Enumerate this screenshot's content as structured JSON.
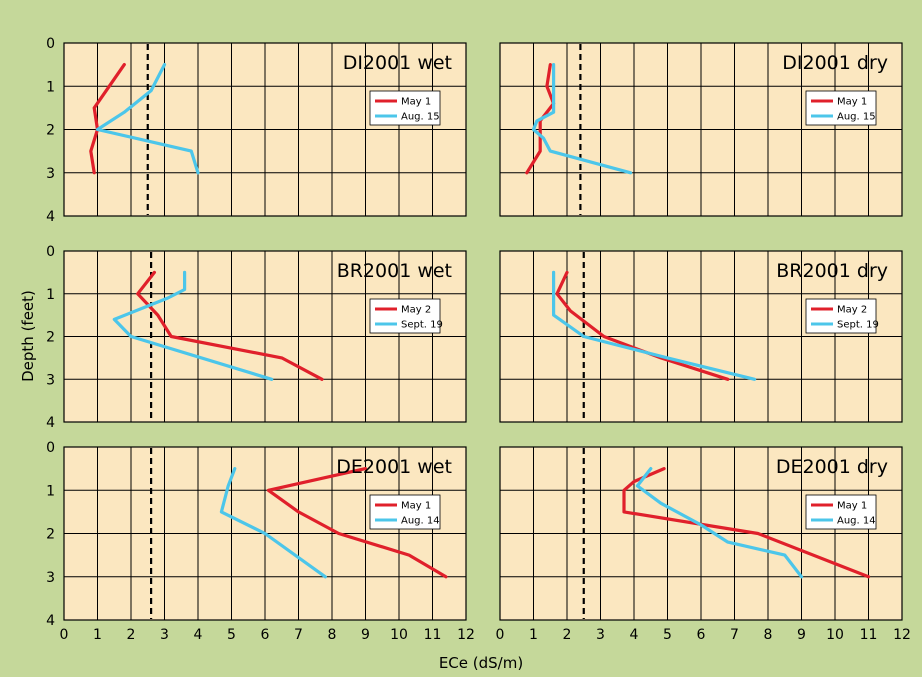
{
  "chart_data": {
    "type": "line",
    "xlabel": "ECe (dS/m)",
    "ylabel": "Depth (feet)",
    "xlim": [
      0,
      12
    ],
    "ylim": [
      4,
      0
    ],
    "x_ticks": [
      0,
      1,
      2,
      3,
      4,
      5,
      6,
      7,
      8,
      9,
      10,
      11,
      12
    ],
    "y_ticks": [
      0,
      1,
      2,
      3,
      4
    ],
    "grid": true,
    "legend_position": "right",
    "colors": {
      "red": "#e0202b",
      "blue": "#4cc6ea",
      "panel_bg": "#fbe7c0",
      "background": "#c5d89a"
    },
    "panels": [
      {
        "title": "DI2001 wet",
        "threshold_x": 2.5,
        "series": [
          {
            "name": "May 1",
            "color": "#e0202b",
            "points": [
              [
                1.8,
                0.5
              ],
              [
                0.9,
                1.5
              ],
              [
                1.0,
                2.0
              ],
              [
                0.8,
                2.5
              ],
              [
                0.9,
                3.0
              ]
            ]
          },
          {
            "name": "Aug. 15",
            "color": "#4cc6ea",
            "points": [
              [
                3.0,
                0.5
              ],
              [
                2.6,
                1.1
              ],
              [
                1.8,
                1.6
              ],
              [
                1.0,
                2.0
              ],
              [
                3.8,
                2.5
              ],
              [
                4.0,
                3.0
              ]
            ]
          }
        ]
      },
      {
        "title": "DI2001 dry",
        "threshold_x": 2.4,
        "series": [
          {
            "name": "May 1",
            "color": "#e0202b",
            "points": [
              [
                1.5,
                0.5
              ],
              [
                1.4,
                1.0
              ],
              [
                1.6,
                1.4
              ],
              [
                1.2,
                1.8
              ],
              [
                1.2,
                2.5
              ],
              [
                0.8,
                3.0
              ]
            ]
          },
          {
            "name": "Aug. 15",
            "color": "#4cc6ea",
            "points": [
              [
                1.6,
                0.5
              ],
              [
                1.6,
                1.0
              ],
              [
                1.6,
                1.6
              ],
              [
                1.1,
                1.8
              ],
              [
                1.0,
                2.0
              ],
              [
                1.3,
                2.2
              ],
              [
                1.5,
                2.5
              ],
              [
                3.9,
                3.0
              ]
            ]
          }
        ]
      },
      {
        "title": "BR2001 wet",
        "threshold_x": 2.6,
        "series": [
          {
            "name": "May 2",
            "color": "#e0202b",
            "points": [
              [
                2.7,
                0.5
              ],
              [
                2.2,
                1.0
              ],
              [
                2.8,
                1.5
              ],
              [
                3.2,
                2.0
              ],
              [
                6.5,
                2.5
              ],
              [
                7.7,
                3.0
              ]
            ]
          },
          {
            "name": "Sept. 19",
            "color": "#4cc6ea",
            "points": [
              [
                3.6,
                0.5
              ],
              [
                3.6,
                0.9
              ],
              [
                3.1,
                1.1
              ],
              [
                1.5,
                1.6
              ],
              [
                2.0,
                2.0
              ],
              [
                6.2,
                3.0
              ]
            ]
          }
        ]
      },
      {
        "title": "BR2001 dry",
        "threshold_x": 2.5,
        "series": [
          {
            "name": "May 2",
            "color": "#e0202b",
            "points": [
              [
                2.0,
                0.5
              ],
              [
                1.7,
                1.0
              ],
              [
                2.1,
                1.4
              ],
              [
                3.1,
                2.0
              ],
              [
                4.8,
                2.5
              ],
              [
                6.8,
                3.0
              ]
            ]
          },
          {
            "name": "Sept. 19",
            "color": "#4cc6ea",
            "points": [
              [
                1.6,
                0.5
              ],
              [
                1.6,
                1.0
              ],
              [
                1.6,
                1.5
              ],
              [
                2.5,
                2.0
              ],
              [
                5.0,
                2.5
              ],
              [
                7.6,
                3.0
              ]
            ]
          }
        ]
      },
      {
        "title": "DE2001 wet",
        "threshold_x": 2.6,
        "series": [
          {
            "name": "May 1",
            "color": "#e0202b",
            "points": [
              [
                9.0,
                0.5
              ],
              [
                6.1,
                1.0
              ],
              [
                7.0,
                1.5
              ],
              [
                8.2,
                2.0
              ],
              [
                10.3,
                2.5
              ],
              [
                11.4,
                3.0
              ]
            ]
          },
          {
            "name": "Aug. 14",
            "color": "#4cc6ea",
            "points": [
              [
                5.1,
                0.5
              ],
              [
                4.9,
                0.9
              ],
              [
                4.7,
                1.5
              ],
              [
                6.0,
                2.0
              ],
              [
                7.8,
                3.0
              ]
            ]
          }
        ]
      },
      {
        "title": "DE2001 dry",
        "threshold_x": 2.5,
        "series": [
          {
            "name": "May 1",
            "color": "#e0202b",
            "points": [
              [
                4.9,
                0.5
              ],
              [
                4.0,
                0.8
              ],
              [
                3.7,
                1.0
              ],
              [
                3.7,
                1.5
              ],
              [
                7.7,
                2.0
              ],
              [
                11.0,
                3.0
              ]
            ]
          },
          {
            "name": "Aug. 14",
            "color": "#4cc6ea",
            "points": [
              [
                4.5,
                0.5
              ],
              [
                4.1,
                0.9
              ],
              [
                4.8,
                1.3
              ],
              [
                6.0,
                1.8
              ],
              [
                6.8,
                2.2
              ],
              [
                8.5,
                2.5
              ],
              [
                9.0,
                3.0
              ]
            ]
          }
        ]
      }
    ]
  }
}
